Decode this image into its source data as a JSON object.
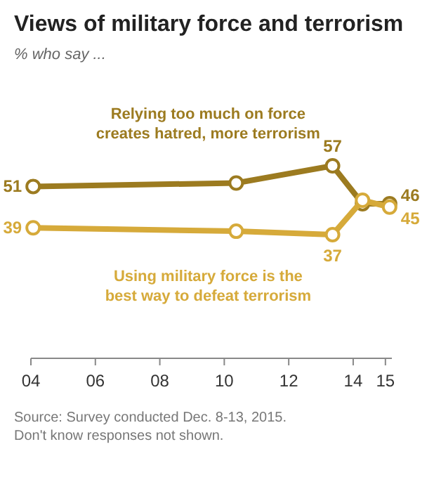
{
  "chart_data": {
    "type": "line",
    "title": "Views of military force and terrorism",
    "subtitle": "% who say ...",
    "x": [
      2004.07,
      2010.37,
      2013.36,
      2014.29,
      2015.13
    ],
    "xlim": [
      2004,
      2015.2
    ],
    "xticks": [
      {
        "value": 2004,
        "label": "04"
      },
      {
        "value": 2006,
        "label": "06"
      },
      {
        "value": 2008,
        "label": "08"
      },
      {
        "value": 2010,
        "label": "10"
      },
      {
        "value": 2012,
        "label": "12"
      },
      {
        "value": 2014,
        "label": "14"
      },
      {
        "value": 2015,
        "label": "15"
      }
    ],
    "tick_labels": "x",
    "marker": "circle",
    "line_style": "solid",
    "series": [
      {
        "name": "Relying too much on force creates hatred, more terrorism",
        "color": "#9c7b20",
        "values": [
          51,
          52,
          57,
          46,
          46
        ],
        "value_labels": [
          "51",
          null,
          "57",
          null,
          "46"
        ]
      },
      {
        "name": "Using military force is the best way to defeat terrorism",
        "color": "#d6aa3a",
        "values": [
          39,
          38,
          37,
          47,
          45
        ],
        "value_labels": [
          "39",
          null,
          "37",
          null,
          "45"
        ]
      }
    ],
    "annotations": [
      "Source: Survey conducted Dec. 8-13, 2015.",
      "Don't know responses not shown."
    ]
  }
}
